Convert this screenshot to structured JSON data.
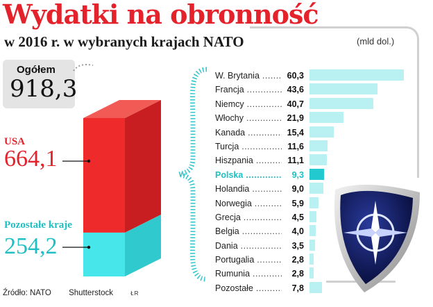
{
  "header": {
    "title": "Wydatki na obronność",
    "subtitle": "w 2016 r. w wybranych krajach NATO",
    "unit": "(mld dol.)"
  },
  "total": {
    "label": "Ogółem",
    "value": "918,3"
  },
  "usa": {
    "label": "USA",
    "value": "664,1"
  },
  "rest": {
    "label": "Pozostałe kraje",
    "value": "254,2"
  },
  "chart_data": [
    {
      "type": "bar",
      "stacked": true,
      "title": "",
      "categories": [
        "USA",
        "Pozostałe kraje"
      ],
      "values": [
        664.1,
        254.2
      ],
      "total": 918.3,
      "colors": {
        "usa": "#e3222b",
        "rest": "#3ee0e5"
      }
    },
    {
      "type": "bar",
      "orientation": "horizontal",
      "title": "",
      "categories": [
        "W. Brytania",
        "Francja",
        "Niemcy",
        "Włochy",
        "Kanada",
        "Turcja",
        "Hiszpania",
        "Polska",
        "Holandia",
        "Norwegia",
        "Grecja",
        "Belgia",
        "Dania",
        "Portugalia",
        "Rumunia",
        "Pozostałe"
      ],
      "labels": [
        "60,3",
        "43,6",
        "40,7",
        "21,9",
        "15,4",
        "11,6",
        "11,1",
        "9,3",
        "9,0",
        "5,9",
        "4,5",
        "4,0",
        "3,5",
        "2,8",
        "2,8",
        "7,8"
      ],
      "values": [
        60.3,
        43.6,
        40.7,
        21.9,
        15.4,
        11.6,
        11.1,
        9.3,
        9.0,
        5.9,
        4.5,
        4.0,
        3.5,
        2.8,
        2.8,
        7.8
      ],
      "highlight": "Polska",
      "xlim": [
        0,
        60.3
      ],
      "colors": {
        "bar": "#b9f1f3",
        "highlight": "#22c9cf"
      }
    }
  ],
  "footer": {
    "source": "Źródło: NATO",
    "photo": "Shutterstock",
    "credit": "ŁR"
  }
}
